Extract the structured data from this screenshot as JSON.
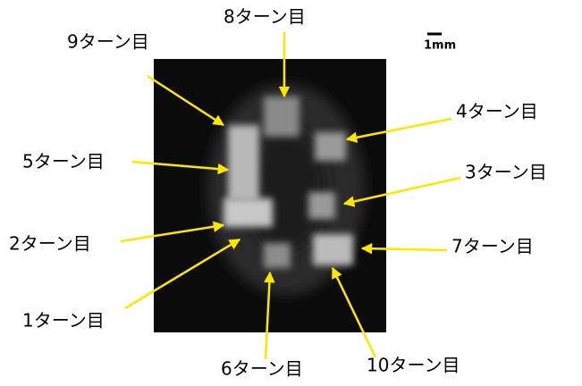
{
  "labels": [
    "9ターン目",
    "8ターン目",
    "4ターン目",
    "5ターン目",
    "3ターン目",
    "2ターン目",
    "7ターン目",
    "1ターン目",
    "6ターン目",
    "10ターン目"
  ],
  "scale_bar": {
    "label": "1mm"
  }
}
